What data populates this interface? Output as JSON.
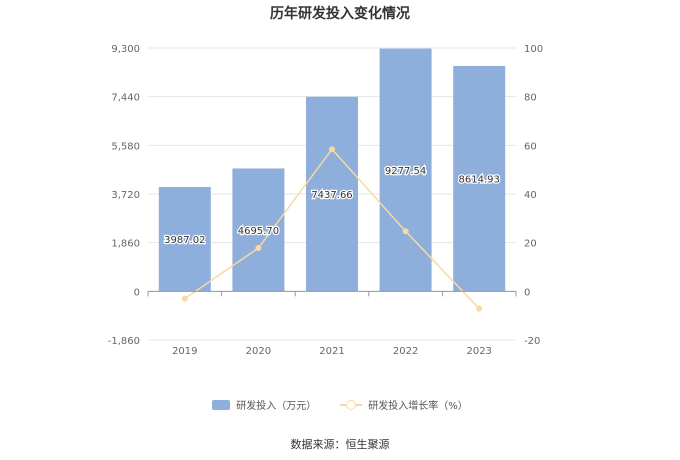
{
  "title": "历年研发投入变化情况",
  "source": "数据来源：恒生聚源",
  "colors": {
    "bar": "#8eaedc",
    "line": "#f9d9a3",
    "axis_text": "#666666",
    "grid": "#e6e6e6"
  },
  "legend": {
    "bar_label": "研发投入（万元）",
    "line_label": "研发投入增长率（%）"
  },
  "chart_data": {
    "type": "bar",
    "categories": [
      "2019",
      "2020",
      "2021",
      "2022",
      "2023"
    ],
    "series": [
      {
        "name": "研发投入（万元）",
        "type": "bar",
        "axis": "left",
        "values": [
          3987.02,
          4695.7,
          7437.66,
          9277.54,
          8614.93
        ],
        "labels": [
          "3987.02",
          "4695.70",
          "7437.66",
          "9277.54",
          "8614.93"
        ]
      },
      {
        "name": "研发投入增长率（%）",
        "type": "line",
        "axis": "right",
        "values": [
          -3.0,
          17.8,
          58.4,
          24.7,
          -7.1
        ]
      }
    ],
    "y_left": {
      "min": -1860,
      "max": 9300,
      "ticks": [
        -1860,
        0,
        1860,
        3720,
        5580,
        7440,
        9300
      ],
      "tick_labels": [
        "-1,860",
        "0",
        "1,860",
        "3,720",
        "5,580",
        "7,440",
        "9,300"
      ]
    },
    "y_right": {
      "min": -20,
      "max": 100,
      "ticks": [
        -20,
        0,
        20,
        40,
        60,
        80,
        100
      ],
      "tick_labels": [
        "-20",
        "0",
        "20",
        "40",
        "60",
        "80",
        "100"
      ]
    },
    "grid": true,
    "legend_position": "bottom"
  }
}
